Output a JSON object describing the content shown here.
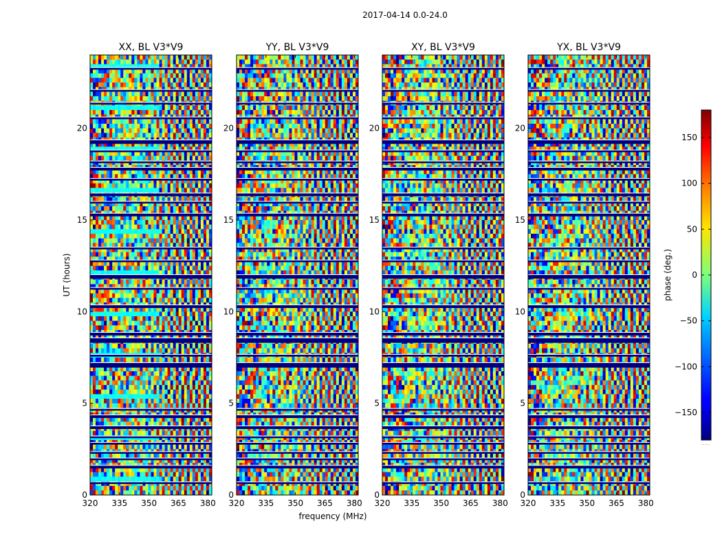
{
  "figure": {
    "suptitle": "2017-04-14 0.0-24.0"
  },
  "chart_data": {
    "type": "heatmap",
    "description_kind": "waterfall phase plots (UT vs frequency), one per polarization",
    "xlabel": "frequency (MHz)",
    "ylabel": "UT (hours)",
    "xlim": [
      320,
      382
    ],
    "ylim": [
      0,
      24
    ],
    "xticks": [
      320,
      335,
      350,
      365,
      380
    ],
    "xtick_labels": [
      "320",
      "335",
      "350",
      "365",
      "380"
    ],
    "yticks": [
      0,
      5,
      10,
      15,
      20
    ],
    "ytick_labels": [
      "0",
      "5",
      "10",
      "15",
      "20"
    ],
    "colormap": "jet",
    "colorbar": {
      "label": "phase (deg.)",
      "range": [
        -180,
        180
      ],
      "ticks": [
        -150,
        -100,
        -50,
        0,
        50,
        100,
        150
      ],
      "tick_labels": [
        "−150",
        "−100",
        "−50",
        "0",
        "50",
        "100",
        "150"
      ],
      "extra_label": "....."
    },
    "panels": [
      {
        "title": "XX, BL V3*V9",
        "pol": "XX",
        "baseline": "V3*V9"
      },
      {
        "title": "YY, BL V3*V9",
        "pol": "YY",
        "baseline": "V3*V9"
      },
      {
        "title": "XY, BL V3*V9",
        "pol": "XY",
        "baseline": "V3*V9"
      },
      {
        "title": "YX, BL V3*V9",
        "pol": "YX",
        "baseline": "V3*V9"
      }
    ],
    "gap_bands_ut_hours": [
      [
        0.6,
        0.7
      ],
      [
        1.45,
        1.6
      ],
      [
        1.9,
        2.0
      ],
      [
        2.25,
        2.35
      ],
      [
        2.75,
        2.85
      ],
      [
        3.1,
        3.2
      ],
      [
        3.6,
        3.75
      ],
      [
        4.2,
        4.35
      ],
      [
        4.6,
        4.7
      ],
      [
        6.95,
        7.2
      ],
      [
        7.55,
        7.65
      ],
      [
        8.3,
        8.55
      ],
      [
        8.7,
        8.85
      ],
      [
        10.2,
        10.35
      ],
      [
        11.2,
        11.3
      ],
      [
        11.8,
        12.0
      ],
      [
        12.7,
        12.8
      ],
      [
        13.4,
        13.5
      ],
      [
        15.2,
        15.35
      ],
      [
        15.9,
        16.0
      ],
      [
        16.3,
        16.45
      ],
      [
        17.15,
        17.25
      ],
      [
        17.7,
        17.85
      ],
      [
        18.1,
        18.2
      ],
      [
        18.7,
        18.8
      ],
      [
        19.15,
        19.35
      ],
      [
        20.5,
        20.6
      ],
      [
        21.3,
        21.4
      ],
      [
        22.0,
        22.1
      ],
      [
        23.2,
        23.3
      ]
    ]
  }
}
